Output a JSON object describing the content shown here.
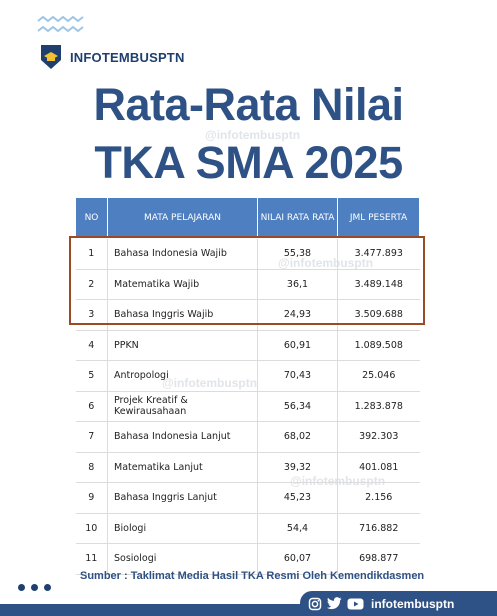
{
  "brand": {
    "name": "INFOTEMBUSPTN"
  },
  "title": {
    "line1": "Rata-Rata Nilai",
    "line2": "TKA SMA 2025"
  },
  "watermark": "@infotembusptn",
  "table": {
    "headers": [
      "NO",
      "MATA PELAJARAN",
      "NILAI RATA RATA",
      "JML PESERTA"
    ],
    "rows": [
      {
        "no": "1",
        "subject": "Bahasa Indonesia Wajib",
        "avg": "55,38",
        "count": "3.477.893"
      },
      {
        "no": "2",
        "subject": "Matematika Wajib",
        "avg": "36,1",
        "count": "3.489.148"
      },
      {
        "no": "3",
        "subject": "Bahasa Inggris Wajib",
        "avg": "24,93",
        "count": "3.509.688"
      },
      {
        "no": "4",
        "subject": "PPKN",
        "avg": "60,91",
        "count": "1.089.508"
      },
      {
        "no": "5",
        "subject": "Antropologi",
        "avg": "70,43",
        "count": "25.046"
      },
      {
        "no": "6",
        "subject": "Projek Kreatif & Kewirausahaan",
        "avg": "56,34",
        "count": "1.283.878"
      },
      {
        "no": "7",
        "subject": "Bahasa Indonesia Lanjut",
        "avg": "68,02",
        "count": "392.303"
      },
      {
        "no": "8",
        "subject": "Matematika Lanjut",
        "avg": "39,32",
        "count": "401.081"
      },
      {
        "no": "9",
        "subject": "Bahasa Inggris Lanjut",
        "avg": "45,23",
        "count": "2.156"
      },
      {
        "no": "10",
        "subject": "Biologi",
        "avg": "54,4",
        "count": "716.882"
      },
      {
        "no": "11",
        "subject": "Sosiologi",
        "avg": "60,07",
        "count": "698.877"
      }
    ]
  },
  "source": "Sumber : Taklimat Media Hasil TKA Resmi Oleh Kemendikdasmen",
  "footer": {
    "handle": "infotembusptn",
    "icons": [
      "instagram-icon",
      "twitter-icon",
      "youtube-icon"
    ]
  },
  "colors": {
    "primary": "#2f5286",
    "header": "#4e7fc1",
    "highlight": "#9c4a24"
  }
}
